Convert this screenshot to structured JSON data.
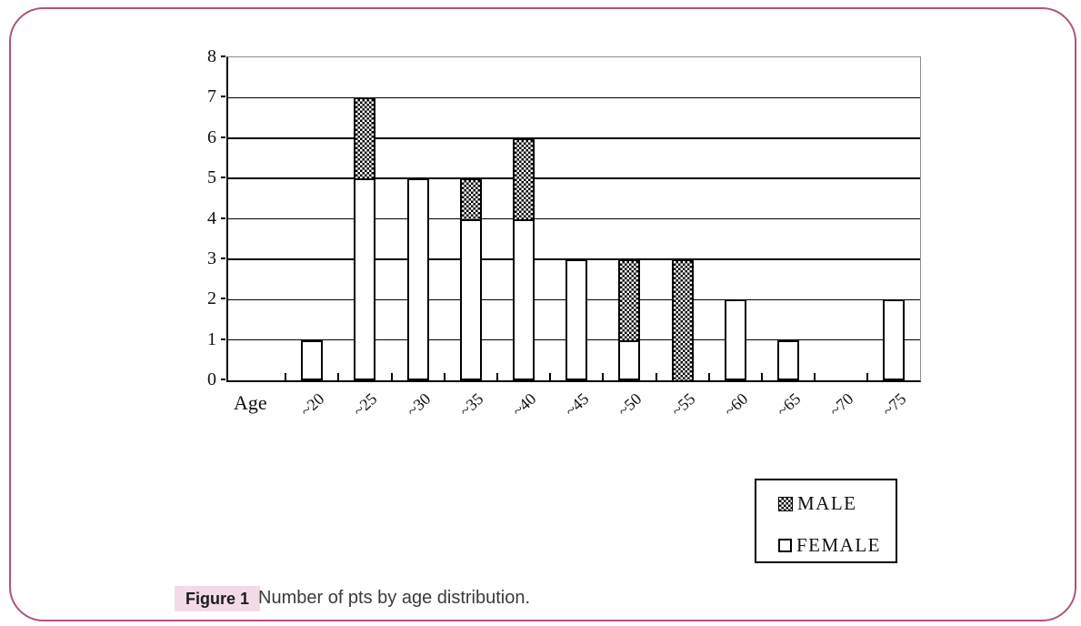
{
  "chart_data": {
    "type": "bar",
    "stacked": true,
    "title": "",
    "xlabel": "Age",
    "ylabel": "",
    "categories": [
      "Age",
      "~20",
      "~25",
      "~30",
      "~35",
      "~40",
      "~45",
      "~50",
      "~55",
      "~60",
      "~65",
      "~70",
      "~75"
    ],
    "first_category_is_axis_title": true,
    "series": [
      {
        "name": "FEMALE",
        "style": "white",
        "values": [
          0,
          1,
          5,
          5,
          4,
          4,
          3,
          1,
          0,
          2,
          1,
          0,
          2
        ]
      },
      {
        "name": "MALE",
        "style": "hatch",
        "values": [
          0,
          0,
          2,
          0,
          1,
          2,
          0,
          2,
          3,
          0,
          0,
          0,
          0
        ]
      }
    ],
    "ylim": [
      0,
      8
    ],
    "yticks": [
      0,
      1,
      2,
      3,
      4,
      5,
      6,
      7,
      8
    ],
    "grid": true,
    "legend_position": "bottom-right"
  },
  "legend": {
    "items": [
      {
        "label": "MALE",
        "swatch": "hatch"
      },
      {
        "label": "FEMALE",
        "swatch": "white"
      }
    ]
  },
  "caption": {
    "tag": "Figure 1",
    "text": "Number of pts by age distribution."
  },
  "colors": {
    "frame_border": "#b0537e",
    "caption_tag_bg": "#f2dbe7",
    "caption_text": "#3b3b3b",
    "plot_border_gray": "#8f8f8f",
    "bar_outline": "#000000"
  }
}
